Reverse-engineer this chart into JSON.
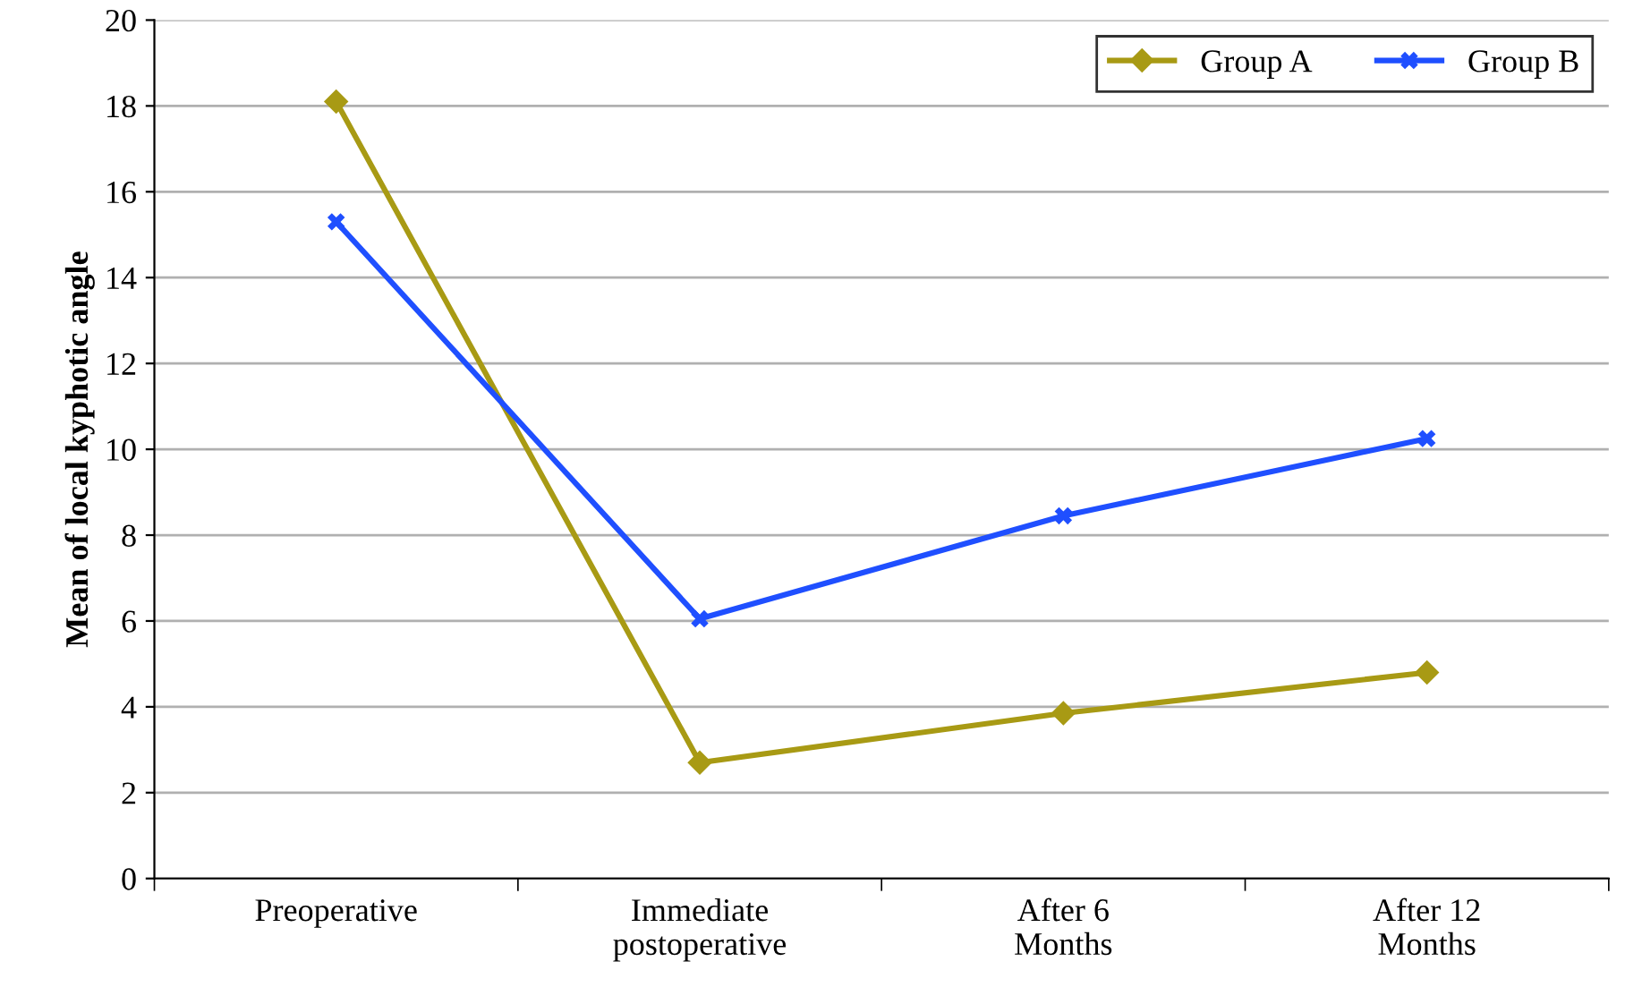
{
  "chart_data": {
    "type": "line",
    "ylabel": "Mean of local kyphotic angle",
    "categories": [
      "Preoperative",
      "Immediate\npostoperative",
      "After 6\nMonths",
      "After 12\nMonths"
    ],
    "series": [
      {
        "name": "Group A",
        "color": "#a89a14",
        "marker": "diamond",
        "values": [
          18.1,
          2.7,
          3.85,
          4.8
        ]
      },
      {
        "name": "Group B",
        "color": "#1f4fff",
        "marker": "cross",
        "values": [
          15.3,
          6.05,
          8.45,
          10.25
        ]
      }
    ],
    "ylim": [
      0,
      20
    ],
    "yticks": [
      0,
      2,
      4,
      6,
      8,
      10,
      12,
      14,
      16,
      18,
      20
    ],
    "grid": "y",
    "legend": "top right",
    "line_style": "solid"
  }
}
